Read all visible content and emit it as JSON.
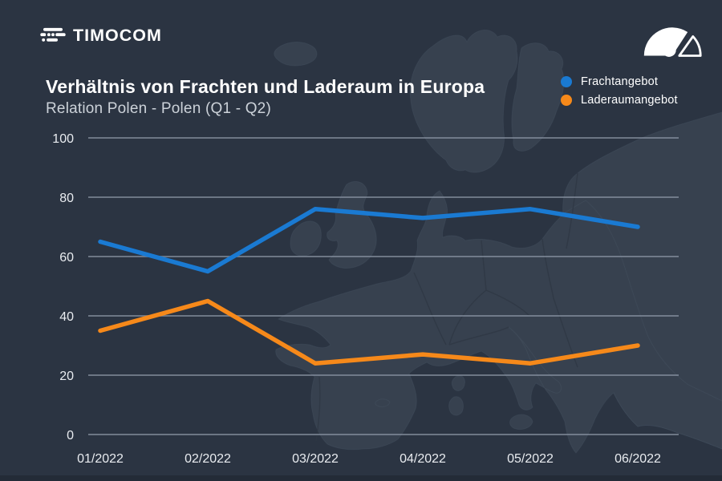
{
  "header": {
    "brand": "TIMOCOM"
  },
  "icons": {
    "logo_icon": "timocom-road-mark",
    "gauge_icon": "barometer-gauge"
  },
  "colors": {
    "background": "#2b3442",
    "map_land": "#37414f",
    "map_border": "#2e3744",
    "gridline": "#8e98a8",
    "axis_text": "#e9ecf0",
    "title_text": "#ffffff",
    "subtitle_text": "#ccd2d9",
    "bottom_bar": "#232b37",
    "freight_blue": "#1a7ad2",
    "cargo_orange": "#f6891a"
  },
  "chart_data": {
    "type": "line",
    "title": "Verhältnis von Frachten und Laderaum in Europa",
    "subtitle": "Relation Polen - Polen (Q1 - Q2)",
    "categories": [
      "01/2022",
      "02/2022",
      "03/2022",
      "04/2022",
      "05/2022",
      "06/2022"
    ],
    "series": [
      {
        "name": "Frachtangebot",
        "color": "#1a7ad2",
        "values": [
          65,
          55,
          76,
          73,
          76,
          70
        ]
      },
      {
        "name": "Laderaumangebot",
        "color": "#f6891a",
        "values": [
          35,
          45,
          24,
          27,
          24,
          30
        ]
      }
    ],
    "yticks": [
      0,
      20,
      40,
      60,
      80,
      100
    ],
    "ylim": [
      0,
      100
    ],
    "grid": "horizontal-only",
    "legend_position": "top-right",
    "background_decoration": "europe-map-silhouette"
  }
}
